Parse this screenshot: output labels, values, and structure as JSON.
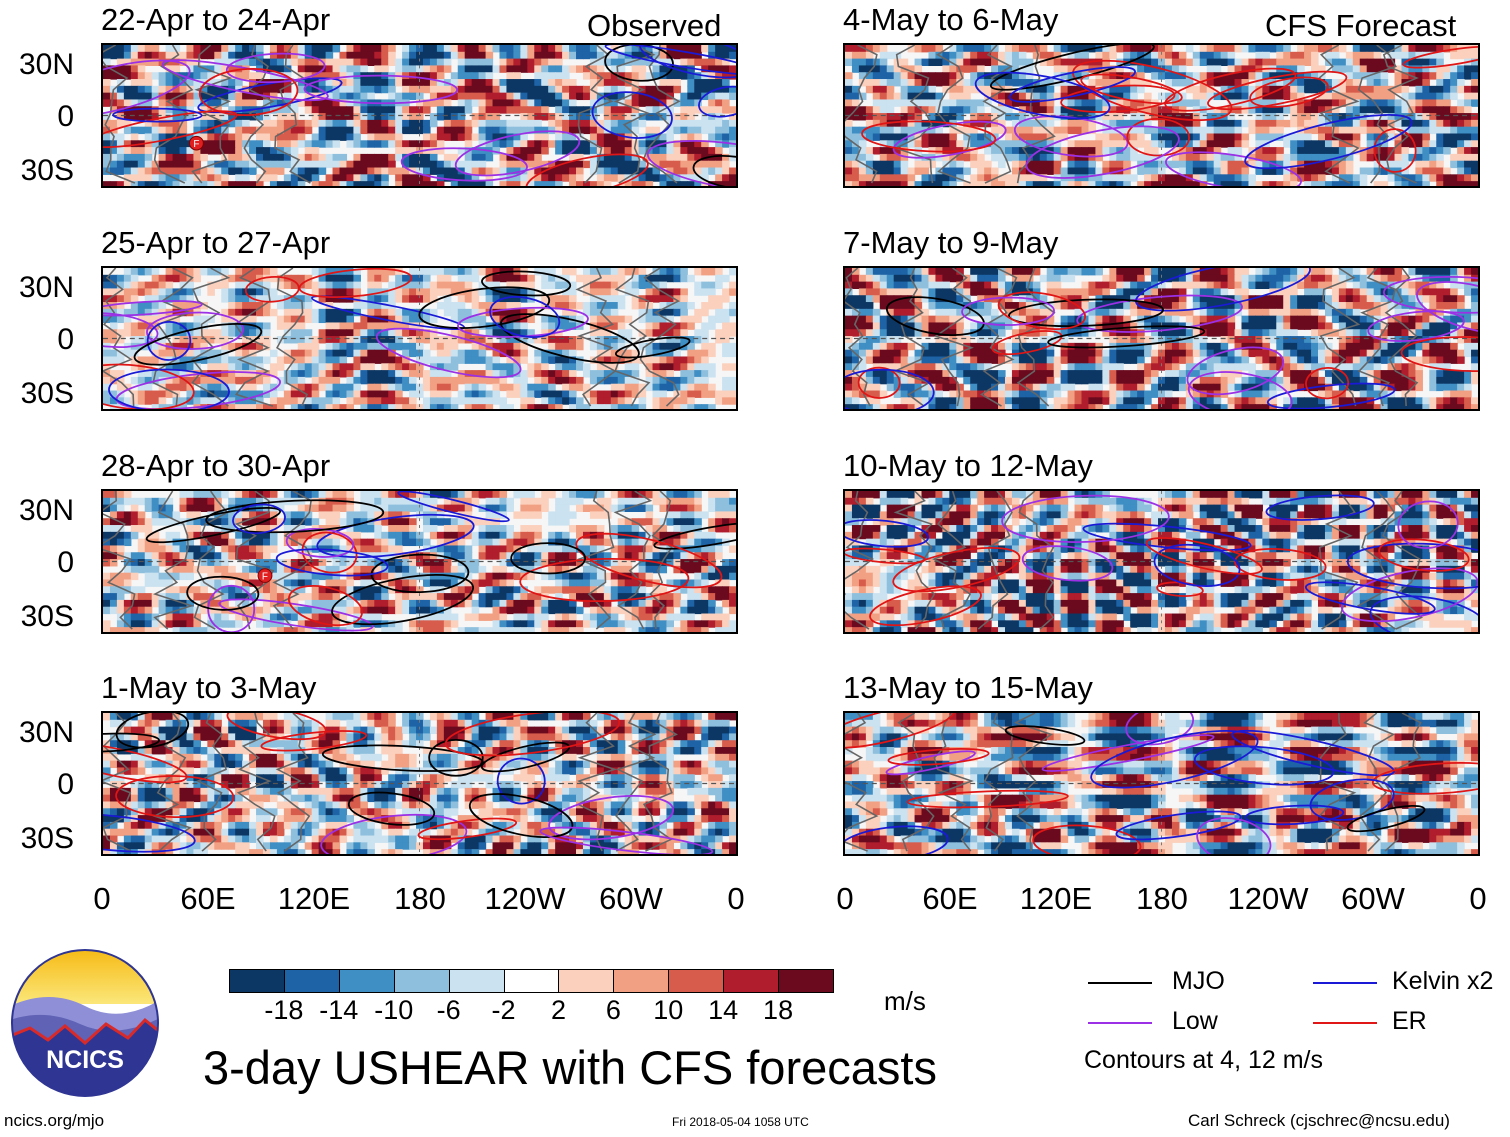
{
  "columns": {
    "observed": {
      "title": "Observed"
    },
    "forecast": {
      "title": "CFS Forecast"
    }
  },
  "panels": [
    {
      "id": "p1",
      "period": "22-Apr to 24-Apr",
      "column": "observed",
      "storm_markers": 1
    },
    {
      "id": "p2",
      "period": "25-Apr to 27-Apr",
      "column": "observed",
      "storm_markers": 0
    },
    {
      "id": "p3",
      "period": "28-Apr to 30-Apr",
      "column": "observed",
      "storm_markers": 1
    },
    {
      "id": "p4",
      "period": "1-May to 3-May",
      "column": "observed",
      "storm_markers": 0
    },
    {
      "id": "p5",
      "period": "4-May to 6-May",
      "column": "forecast",
      "storm_markers": 0
    },
    {
      "id": "p6",
      "period": "7-May to 9-May",
      "column": "forecast",
      "storm_markers": 0
    },
    {
      "id": "p7",
      "period": "10-May to 12-May",
      "column": "forecast",
      "storm_markers": 0
    },
    {
      "id": "p8",
      "period": "13-May to 15-May",
      "column": "forecast",
      "storm_markers": 0
    }
  ],
  "storm_marker_label": "F",
  "axes": {
    "lat_ticks": [
      "30N",
      "0",
      "30S"
    ],
    "lon_ticks": [
      "0",
      "60E",
      "120E",
      "180",
      "120W",
      "60W",
      "0"
    ]
  },
  "colorbar": {
    "unit": "m/s",
    "tick_labels": [
      "-18",
      "-14",
      "-10",
      "-6",
      "-2",
      "2",
      "6",
      "10",
      "14",
      "18"
    ],
    "colors": [
      "#0c3764",
      "#1e63a6",
      "#3f8ec4",
      "#8ec0de",
      "#cbe2f0",
      "#ffffff",
      "#fbd0bd",
      "#f2a083",
      "#d85c4c",
      "#b01d2c",
      "#6b0a1f"
    ]
  },
  "legend": {
    "items": [
      {
        "label": "MJO",
        "color": "#000000"
      },
      {
        "label": "Kelvin x2",
        "color": "#1a1ad6"
      },
      {
        "label": "Low",
        "color": "#9b30e6"
      },
      {
        "label": "ER",
        "color": "#e01515"
      }
    ],
    "note": "Contours at 4, 12 m/s"
  },
  "main_title": "3-day USHEAR with CFS forecasts",
  "logo": {
    "text": "NCICS"
  },
  "footer": {
    "website": "ncics.org/mjo",
    "timestamp": "Fri 2018-05-04 1058 UTC",
    "author": "Carl Schreck (cjschrec@ncsu.edu)"
  }
}
